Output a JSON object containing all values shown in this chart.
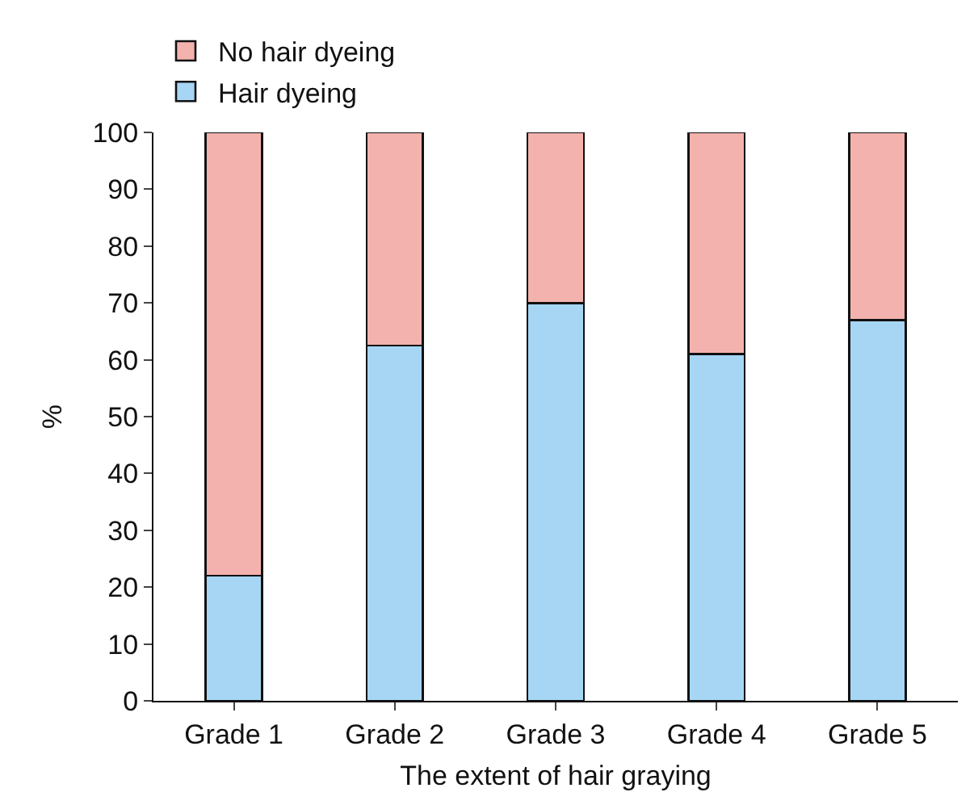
{
  "chart_data": {
    "type": "bar",
    "stacked": true,
    "xlabel": "The extent of hair graying",
    "ylabel": "%",
    "categories": [
      "Grade 1",
      "Grade 2",
      "Grade 3",
      "Grade 4",
      "Grade 5"
    ],
    "series": [
      {
        "name": "Hair dyeing",
        "color": "#a6d6f4",
        "values": [
          22,
          62.5,
          70,
          61,
          67
        ]
      },
      {
        "name": "No hair dyeing",
        "color": "#f4b2ae",
        "values": [
          78,
          37.5,
          30,
          39,
          33
        ]
      }
    ],
    "ylim": [
      0,
      100
    ],
    "yticks": [
      0,
      10,
      20,
      30,
      40,
      50,
      60,
      70,
      80,
      90,
      100
    ],
    "grid": false,
    "legend": "top left"
  }
}
